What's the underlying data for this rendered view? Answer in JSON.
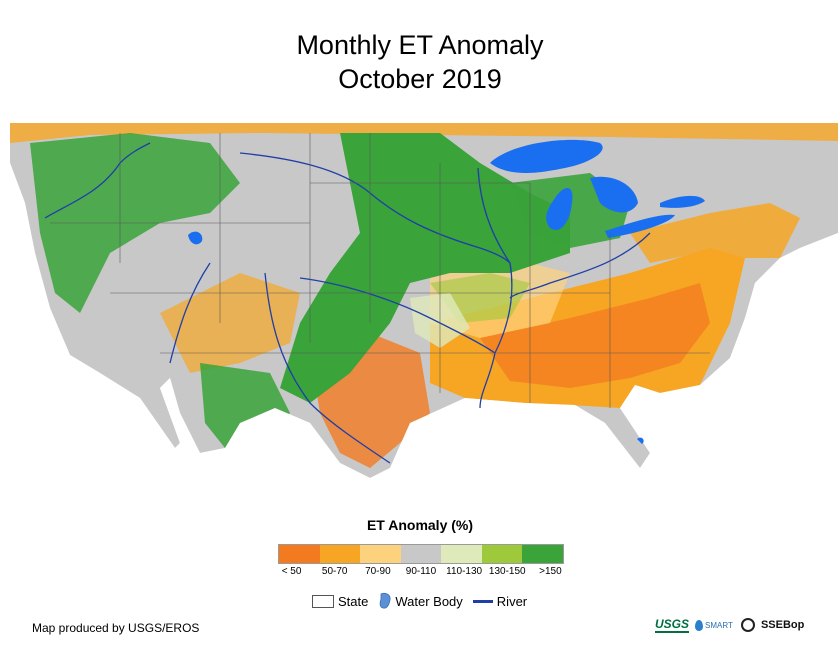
{
  "title": {
    "line1": "Monthly ET Anomaly",
    "line2": "October 2019"
  },
  "legend": {
    "title": "ET Anomaly (%)",
    "classes": [
      {
        "label": "< 50",
        "color": "#f47a20"
      },
      {
        "label": "50-70",
        "color": "#f7a624"
      },
      {
        "label": "70-90",
        "color": "#fdd27e"
      },
      {
        "label": "90-110",
        "color": "#c8c8c8"
      },
      {
        "label": "110-130",
        "color": "#dfeaba"
      },
      {
        "label": "130-150",
        "color": "#9ec93a"
      },
      {
        "label": ">150",
        "color": "#3aa33a"
      }
    ],
    "symbols": {
      "state": "State",
      "water_body": "Water Body",
      "river": "River"
    }
  },
  "map_colors": {
    "water": "#1a6ff0",
    "river": "#1f3fa8",
    "state_border": "#5a5a5a"
  },
  "credit": "Map produced by USGS/EROS",
  "logos": {
    "usgs": "USGS",
    "smart": "SMART",
    "ssebop": "SSEBop"
  }
}
